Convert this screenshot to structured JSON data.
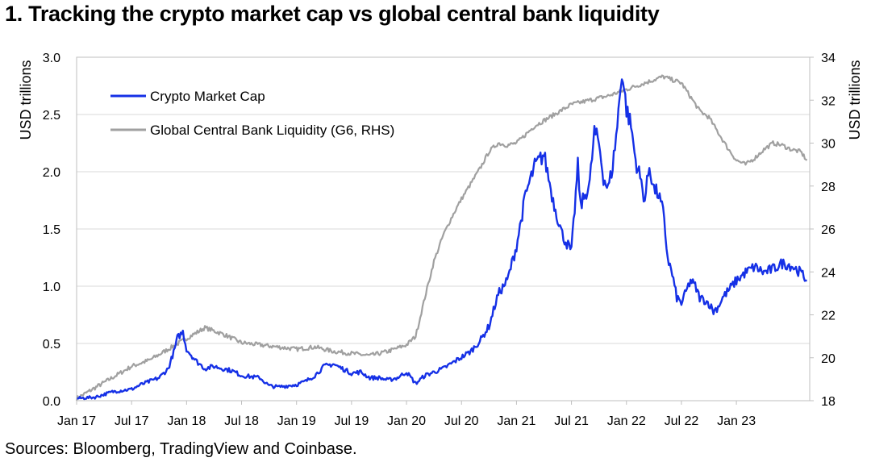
{
  "header": {
    "title": "1. Tracking the crypto market cap vs global central bank liquidity"
  },
  "footer": {
    "source": "Sources: Bloomberg, TradingView and Coinbase."
  },
  "colors": {
    "crypto": "#1530e6",
    "liquidity": "#a0a0a0",
    "grid": "#d9d9d9"
  },
  "chart_data": {
    "type": "line",
    "title": "1. Tracking the crypto market cap vs global central bank liquidity",
    "ylabel": "USD trillions",
    "ylabel_right": "USD trillions",
    "ylim": [
      0,
      3.0
    ],
    "ylim_right": [
      18,
      34
    ],
    "yticks": [
      "0.0",
      "0.5",
      "1.0",
      "1.5",
      "2.0",
      "2.5",
      "3.0"
    ],
    "yticks_right": [
      "18",
      "20",
      "22",
      "24",
      "26",
      "28",
      "30",
      "32",
      "34"
    ],
    "xticks": [
      "Jan 17",
      "Jul 17",
      "Jan 18",
      "Jul 18",
      "Jan 19",
      "Jul 19",
      "Jan 20",
      "Jul 20",
      "Jan 21",
      "Jul 21",
      "Jan 22",
      "Jul 22",
      "Jan 23"
    ],
    "x_range_months": [
      0,
      80
    ],
    "grid": true,
    "legend_position": "top-left",
    "series": [
      {
        "name": "Crypto Market Cap",
        "axis": "left",
        "x_months": [
          0,
          2,
          4,
          6,
          7,
          8,
          9,
          10,
          10.7,
          11,
          11.6,
          12,
          12.5,
          13,
          14,
          15,
          16,
          17,
          18,
          19,
          20,
          21,
          22,
          23,
          24,
          25,
          26,
          27,
          28,
          29,
          30,
          31,
          32,
          33,
          34,
          35,
          36,
          37,
          38,
          39,
          40,
          41,
          42,
          43,
          44,
          45,
          46,
          47,
          48,
          49,
          50,
          51,
          52,
          53,
          54,
          54.7,
          55,
          56,
          56.5,
          57,
          57.5,
          58,
          58.5,
          59,
          59.5,
          60,
          60.5,
          61,
          61.5,
          62,
          62.5,
          63,
          63.5,
          64,
          64.5,
          65,
          65.5,
          66,
          66.5,
          67,
          67.5,
          68,
          68.5,
          69,
          69.5,
          70,
          70.5,
          71,
          72,
          73,
          74,
          75,
          76,
          77,
          78,
          79,
          79.7
        ],
        "values": [
          0.02,
          0.03,
          0.08,
          0.1,
          0.14,
          0.17,
          0.2,
          0.28,
          0.45,
          0.55,
          0.6,
          0.45,
          0.4,
          0.35,
          0.28,
          0.3,
          0.28,
          0.26,
          0.22,
          0.21,
          0.2,
          0.13,
          0.12,
          0.13,
          0.14,
          0.17,
          0.22,
          0.3,
          0.32,
          0.28,
          0.24,
          0.25,
          0.2,
          0.2,
          0.18,
          0.2,
          0.25,
          0.15,
          0.22,
          0.25,
          0.28,
          0.33,
          0.38,
          0.43,
          0.52,
          0.65,
          0.93,
          1.05,
          1.35,
          1.8,
          2.05,
          2.15,
          1.75,
          1.45,
          1.3,
          2.05,
          1.7,
          1.9,
          2.35,
          2.25,
          1.95,
          1.85,
          2.05,
          2.4,
          2.88,
          2.55,
          2.4,
          2.1,
          1.95,
          1.75,
          2.05,
          1.85,
          1.8,
          1.65,
          1.25,
          1.1,
          0.9,
          0.85,
          0.95,
          1.05,
          1.0,
          0.9,
          0.88,
          0.85,
          0.78,
          0.82,
          0.9,
          0.95,
          1.05,
          1.12,
          1.17,
          1.12,
          1.15,
          1.2,
          1.18,
          1.12,
          1.05
        ]
      },
      {
        "name": "Global Central Bank Liquidity (G6, RHS)",
        "axis": "right",
        "x_months": [
          0,
          2,
          4,
          6,
          8,
          10,
          12,
          14,
          16,
          18,
          20,
          22,
          24,
          26,
          28,
          30,
          32,
          34,
          36,
          37,
          38,
          39,
          40,
          41,
          42,
          43,
          44,
          45,
          46,
          47,
          48,
          50,
          52,
          54,
          56,
          58,
          60,
          62,
          64,
          66,
          68,
          69,
          70,
          71,
          72,
          73,
          74,
          75,
          76,
          77,
          78,
          79,
          79.7
        ],
        "values": [
          18.1,
          18.6,
          19.1,
          19.6,
          19.9,
          20.4,
          20.9,
          21.4,
          21.1,
          20.7,
          20.6,
          20.5,
          20.4,
          20.5,
          20.3,
          20.2,
          20.1,
          20.3,
          20.6,
          21.0,
          22.8,
          24.5,
          25.7,
          26.6,
          27.4,
          28.1,
          28.8,
          29.6,
          30.0,
          29.9,
          30.0,
          30.8,
          31.3,
          31.8,
          32.0,
          32.2,
          32.5,
          32.8,
          33.1,
          32.8,
          31.5,
          31.2,
          30.5,
          29.8,
          29.2,
          29.0,
          29.3,
          29.7,
          30.0,
          29.9,
          29.7,
          29.6,
          29.2
        ]
      }
    ]
  }
}
